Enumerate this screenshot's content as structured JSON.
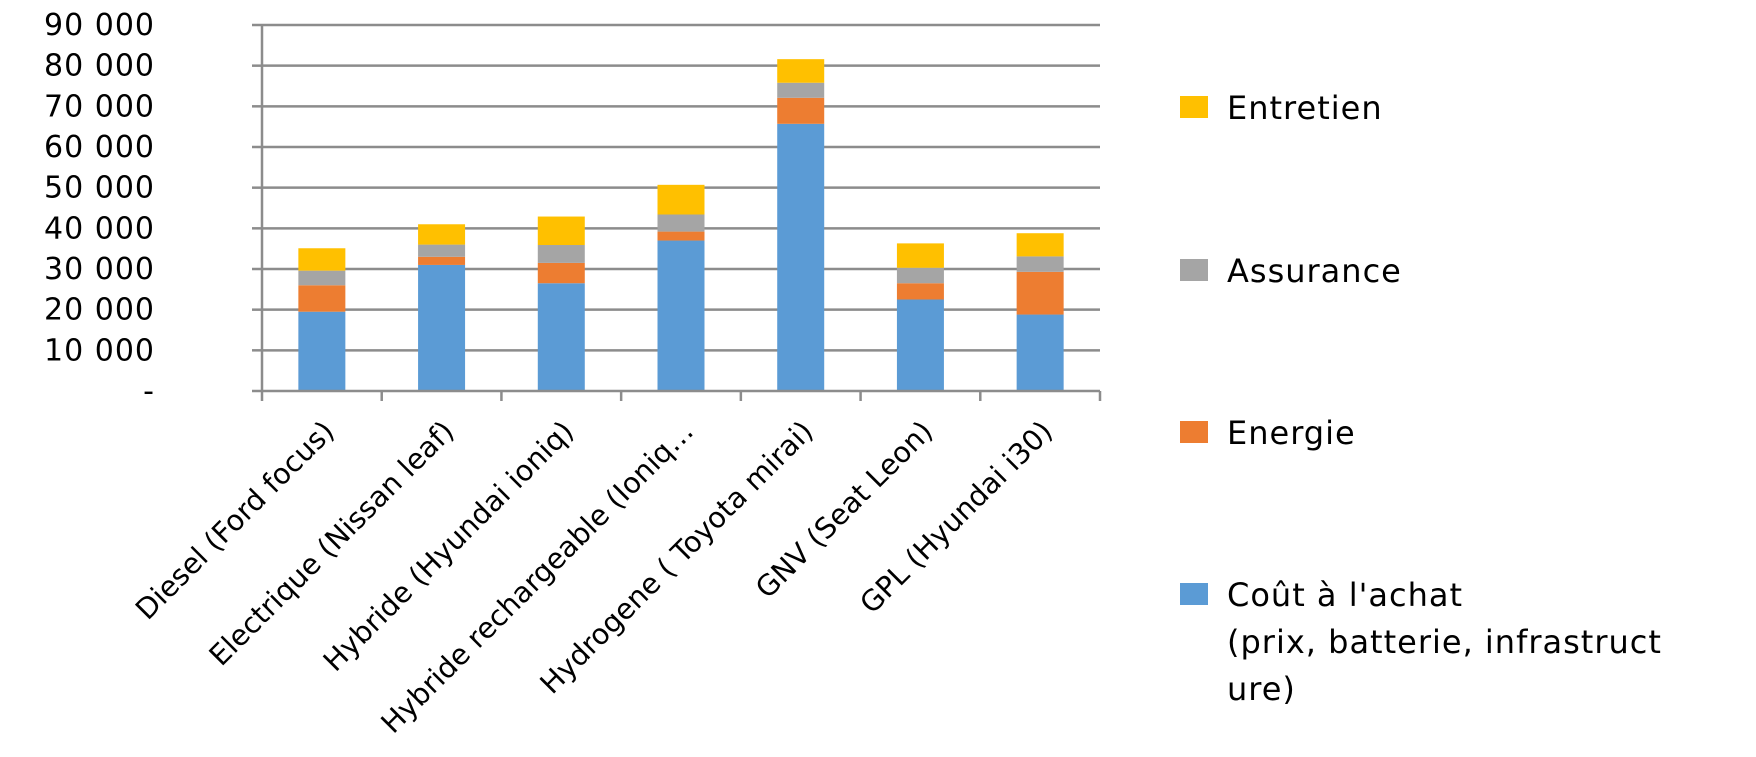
{
  "chart_data": {
    "type": "bar",
    "stacked": true,
    "categories": [
      "Diesel (Ford focus)",
      "Electrique (Nissan leaf)",
      "Hybride (Hyundai ioniq)",
      "Hybride rechargeable (Ioniq…",
      "Hydrogene ( Toyota mirai)",
      "GNV (Seat Leon)",
      "GPL (Hyundai i30)"
    ],
    "series": [
      {
        "name": "Coût à l'achat (prix, batterie, infrastructure)",
        "color": "#5B9BD5",
        "values": [
          19500,
          31000,
          26500,
          37000,
          65700,
          22500,
          18800
        ]
      },
      {
        "name": "Energie",
        "color": "#ED7D31",
        "values": [
          6500,
          2000,
          5000,
          2200,
          6400,
          4000,
          10500
        ]
      },
      {
        "name": "Assurance",
        "color": "#A5A5A5",
        "values": [
          3600,
          3000,
          4400,
          4200,
          3700,
          3800,
          3800
        ]
      },
      {
        "name": "Entretien",
        "color": "#FFC000",
        "values": [
          5500,
          5000,
          7000,
          7300,
          5800,
          6000,
          5700
        ]
      }
    ],
    "ylim": [
      0,
      90000
    ],
    "yticks": [
      0,
      10000,
      20000,
      30000,
      40000,
      50000,
      60000,
      70000,
      80000,
      90000
    ],
    "ytick_labels": [
      "-",
      "10 000",
      "20 000",
      "30 000",
      "40 000",
      "50 000",
      "60 000",
      "70 000",
      "80 000",
      "90 000"
    ],
    "title": "",
    "xlabel": "",
    "ylabel": "",
    "grid": true,
    "legend_position": "right",
    "legend": [
      {
        "name": "Entretien",
        "color": "#FFC000",
        "lines": [
          "Entretien"
        ]
      },
      {
        "name": "Assurance",
        "color": "#A5A5A5",
        "lines": [
          "Assurance"
        ]
      },
      {
        "name": "Energie",
        "color": "#ED7D31",
        "lines": [
          "Energie"
        ]
      },
      {
        "name": "Coût à l'achat (prix, batterie, infrastructure)",
        "color": "#5B9BD5",
        "lines": [
          "Coût à l'achat",
          "(prix, batterie, infrastruct",
          "ure)"
        ]
      }
    ]
  }
}
